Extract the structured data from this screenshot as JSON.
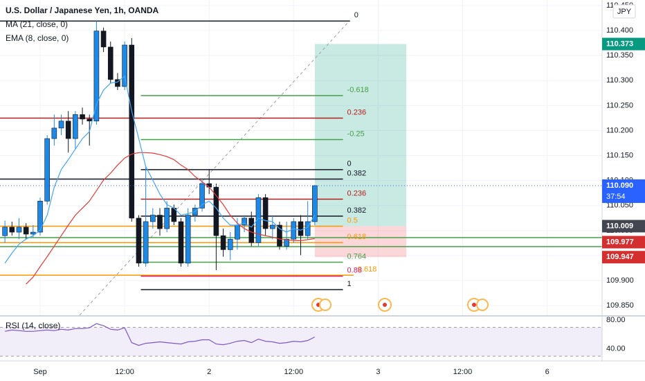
{
  "chart_data": [
    {
      "type": "candlestick",
      "title": "U.S. Dollar / Japanese Yen, 1h, OANDA",
      "currency": "JPY",
      "up_color": "#1e88e5",
      "down_color": "#131722",
      "x": [
        -5,
        -4,
        -3,
        -2,
        -1,
        0,
        1,
        2,
        3,
        4,
        5,
        6,
        7,
        8,
        9,
        10,
        11,
        12,
        13,
        14,
        15,
        16,
        17,
        18,
        19,
        20,
        21,
        22,
        23,
        24,
        25,
        26,
        27,
        28,
        29,
        30,
        31,
        32,
        33,
        34,
        35,
        36,
        37,
        38,
        39
      ],
      "open": [
        109.99,
        110.007,
        109.997,
        110.007,
        109.993,
        109.997,
        110.059,
        110.184,
        110.205,
        110.219,
        110.184,
        110.232,
        110.223,
        110.219,
        110.399,
        110.367,
        110.302,
        110.288,
        110.371,
        110.025,
        109.935,
        110.018,
        110.031,
        110.004,
        110.045,
        110.018,
        109.935,
        110.031,
        110.045,
        110.094,
        110.087,
        109.99,
        109.962,
        109.983,
        110.011,
        110.025,
        109.976,
        110.066,
        110.004,
        110.011,
        109.969,
        109.983,
        110.018,
        109.99,
        110.018
      ],
      "high": [
        110.02,
        110.018,
        110.025,
        110.015,
        110.011,
        110.066,
        110.191,
        110.232,
        110.232,
        110.239,
        110.239,
        110.246,
        110.232,
        110.419,
        110.406,
        110.378,
        110.315,
        110.378,
        110.385,
        110.031,
        110.128,
        110.045,
        110.045,
        110.059,
        110.052,
        110.025,
        110.045,
        110.052,
        110.101,
        110.122,
        110.094,
        110.004,
        109.997,
        110.025,
        110.031,
        110.038,
        110.073,
        110.073,
        110.031,
        110.018,
        110.018,
        110.025,
        110.031,
        110.059,
        110.09
      ],
      "low": [
        109.976,
        109.99,
        109.983,
        109.983,
        109.987,
        109.99,
        110.052,
        110.17,
        110.191,
        110.156,
        110.163,
        110.212,
        110.17,
        110.212,
        110.357,
        110.295,
        110.281,
        110.281,
        110.018,
        109.928,
        109.928,
        110.004,
        109.99,
        109.997,
        110.011,
        109.928,
        109.928,
        110.018,
        110.038,
        110.073,
        109.921,
        109.948,
        109.941,
        109.962,
        109.997,
        109.969,
        109.969,
        109.99,
        109.983,
        109.962,
        109.962,
        109.976,
        109.951,
        109.983,
        110.011
      ],
      "close": [
        110.007,
        109.997,
        110.007,
        109.993,
        109.997,
        110.059,
        110.184,
        110.205,
        110.219,
        110.184,
        110.232,
        110.223,
        110.219,
        110.399,
        110.367,
        110.302,
        110.288,
        110.371,
        110.025,
        109.935,
        110.018,
        110.031,
        110.004,
        110.045,
        110.018,
        109.935,
        110.031,
        110.045,
        110.094,
        110.087,
        109.99,
        109.962,
        109.983,
        110.011,
        110.025,
        109.976,
        110.066,
        110.004,
        110.011,
        109.969,
        109.983,
        110.018,
        109.99,
        110.018,
        110.09
      ],
      "series": [
        {
          "name": "MA (21, close, 0)",
          "color": "#e53935",
          "values": [
            null,
            null,
            null,
            109.893,
            109.907,
            109.928,
            109.948,
            109.969,
            109.99,
            110.011,
            110.031,
            110.045,
            110.059,
            110.08,
            110.101,
            110.115,
            110.131,
            110.145,
            110.153,
            110.156,
            110.156,
            110.155,
            110.152,
            110.148,
            110.142,
            110.131,
            110.122,
            110.108,
            110.098,
            110.087,
            110.07,
            110.052,
            110.031,
            110.015,
            110.004,
            109.997,
            109.993,
            109.99,
            109.987,
            109.983,
            109.982,
            109.98,
            109.98,
            109.982,
            109.984
          ]
        },
        {
          "name": "EMA (8, close, 0)",
          "color": "#42a5f5",
          "values": [
            109.935,
            109.955,
            109.973,
            109.983,
            109.99,
            110.001,
            110.031,
            110.087,
            110.122,
            110.142,
            110.163,
            110.184,
            110.198,
            110.253,
            110.281,
            110.295,
            110.297,
            110.309,
            110.239,
            110.184,
            110.128,
            110.101,
            110.073,
            110.052,
            110.045,
            110.031,
            110.034,
            110.038,
            110.052,
            110.059,
            110.045,
            110.025,
            110.011,
            110.011,
            110.015,
            110.007,
            110.025,
            110.02,
            110.018,
            110.004,
            109.997,
            110.004,
            110.001,
            110.007,
            110.031
          ]
        }
      ],
      "xlim": [
        -5.7,
        79.8
      ],
      "xticks": [
        {
          "value": 0,
          "label": "Sep"
        },
        {
          "value": 12,
          "label": "12:00"
        },
        {
          "value": 24,
          "label": "2"
        },
        {
          "value": 36,
          "label": "12:00"
        },
        {
          "value": 48,
          "label": "3"
        },
        {
          "value": 60,
          "label": "12:00"
        },
        {
          "value": 72,
          "label": "6"
        }
      ],
      "ylim": [
        109.831,
        110.461
      ],
      "yticks": [
        {
          "value": 109.85,
          "label": "109.850"
        },
        {
          "value": 109.9,
          "label": "109.900"
        },
        {
          "value": 109.95,
          "label": "109.950"
        },
        {
          "value": 110,
          "label": "110.000"
        },
        {
          "value": 110.05,
          "label": "110.050"
        },
        {
          "value": 110.1,
          "label": "110.100"
        },
        {
          "value": 110.15,
          "label": "110.150"
        },
        {
          "value": 110.2,
          "label": "110.200"
        },
        {
          "value": 110.25,
          "label": "110.250"
        },
        {
          "value": 110.3,
          "label": "110.300"
        },
        {
          "value": 110.35,
          "label": "110.350"
        },
        {
          "value": 110.4,
          "label": "110.400"
        },
        {
          "value": 110.45,
          "label": "110.450"
        }
      ],
      "grid": true,
      "fib_levels": [
        {
          "label": "0",
          "value": 110.419,
          "color": "#131722",
          "x_start": -5.7,
          "x_end": 44
        },
        {
          "label": "-0.618",
          "value": 110.27,
          "color": "#43a047",
          "x_start": 14.3,
          "x_end": 43
        },
        {
          "label": "0.236",
          "value": 110.225,
          "color": "#b71c1c",
          "x_start": -5.7,
          "x_end": 43
        },
        {
          "label": "-0.25",
          "value": 110.182,
          "color": "#43a047",
          "x_start": 14.3,
          "x_end": 43
        },
        {
          "label": "0",
          "value": 110.122,
          "color": "#131722",
          "x_start": 14.3,
          "x_end": 43
        },
        {
          "label": "0.382",
          "value": 110.103,
          "color": "#131722",
          "x_start": -5.7,
          "x_end": 43
        },
        {
          "label": "0.236",
          "value": 110.063,
          "color": "#b71c1c",
          "x_start": 14.3,
          "x_end": 43
        },
        {
          "label": "0.382",
          "value": 110.029,
          "color": "#131722",
          "x_start": 14.3,
          "x_end": 43
        },
        {
          "label": "0.5",
          "value": 110.009,
          "color": "#ff9800",
          "x_start": -5.7,
          "x_end": 43
        },
        {
          "label": "0.618",
          "value": 109.976,
          "color": "#ff9800",
          "x_start": -5.7,
          "x_end": 43
        },
        {
          "label": "0.764",
          "value": 109.937,
          "color": "#43a047",
          "x_start": 14.3,
          "x_end": 43
        },
        {
          "label": "0.618",
          "value": 109.911,
          "color": "#ff9800",
          "x_start": -5.7,
          "x_end": 44.5
        },
        {
          "label": "0.88",
          "value": 109.909,
          "color": "#d81b60",
          "x_start": 14.3,
          "x_end": 43
        },
        {
          "label": "1",
          "value": 109.882,
          "color": "#131722",
          "x_start": 14.3,
          "x_end": 43
        }
      ],
      "lines": [
        {
          "value": 109.986,
          "color": "#43a047"
        },
        {
          "value": 109.968,
          "color": "#43a047"
        }
      ],
      "position": {
        "x_start": 39,
        "x_end": 52,
        "target": 110.373,
        "entry": 110.009,
        "stop": 109.947
      },
      "last": {
        "value": 110.09,
        "label": "110.090",
        "countdown": "37:54"
      },
      "price_tags": [
        {
          "value": 109.977,
          "color": "#d32f2f"
        }
      ]
    },
    {
      "type": "line",
      "title": "RSI (14, close)",
      "color": "#7e57c2",
      "x": [
        -5,
        -4,
        -3,
        -2,
        -1,
        0,
        1,
        2,
        3,
        4,
        5,
        6,
        7,
        8,
        9,
        10,
        11,
        12,
        13,
        14,
        15,
        16,
        17,
        18,
        19,
        20,
        21,
        22,
        23,
        24,
        25,
        26,
        27,
        28,
        29,
        30,
        31,
        32,
        33,
        34,
        35,
        36,
        37,
        38,
        39
      ],
      "values": [
        64.4,
        66.3,
        65.4,
        64.4,
        64.4,
        65.4,
        66.3,
        65.4,
        67.3,
        66.3,
        68.3,
        68.3,
        69.3,
        75.1,
        72.2,
        67.3,
        66.3,
        69.3,
        48.8,
        44.9,
        47.8,
        48.8,
        49.8,
        48.8,
        47.8,
        46.8,
        49.8,
        50.7,
        52.7,
        52.7,
        46.8,
        45.9,
        47.8,
        50.7,
        51.7,
        48.8,
        53.7,
        50.7,
        49.8,
        47.8,
        48.8,
        50.7,
        49.8,
        51.7,
        56.6
      ],
      "xlim": [
        -5.7,
        79.8
      ],
      "ylim": [
        23.4,
        84.9
      ],
      "yticks": [
        {
          "value": 80,
          "label": "80.00"
        },
        {
          "value": 40,
          "label": "40.00"
        }
      ],
      "band": [
        30,
        70
      ]
    }
  ]
}
